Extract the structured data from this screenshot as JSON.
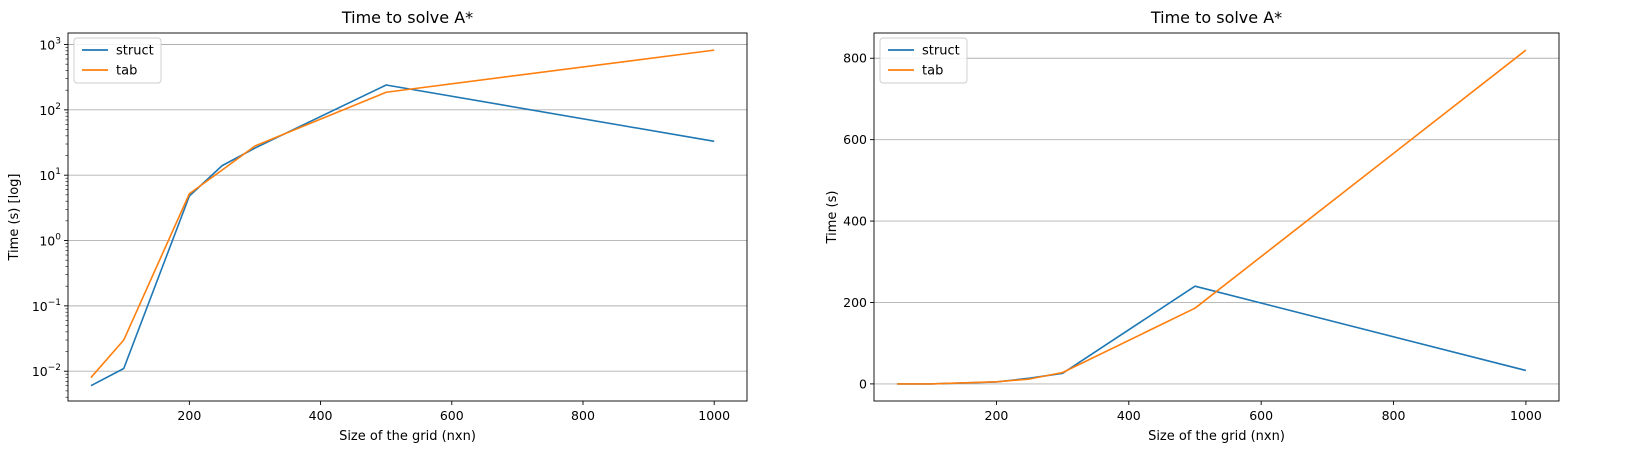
{
  "chart_data": [
    {
      "type": "line",
      "title": "Time to solve A*",
      "xlabel": "Size of the grid (nxn)",
      "ylabel": "Time (s) [log]",
      "yscale": "log",
      "xlim": [
        15,
        1050
      ],
      "ylim": [
        0.0035,
        1500
      ],
      "xticks": [
        200,
        400,
        600,
        800,
        1000
      ],
      "yticks": [
        0.01,
        0.1,
        1,
        10,
        100,
        1000
      ],
      "ytick_labels": [
        {
          "base": "10",
          "exp": "−2"
        },
        {
          "base": "10",
          "exp": "−1"
        },
        {
          "base": "10",
          "exp": "0"
        },
        {
          "base": "10",
          "exp": "1"
        },
        {
          "base": "10",
          "exp": "2"
        },
        {
          "base": "10",
          "exp": "3"
        }
      ],
      "grid": "y",
      "legend_position": "top-left",
      "x": [
        50,
        100,
        200,
        250,
        300,
        500,
        1000
      ],
      "series": [
        {
          "name": "struct",
          "color": "#1f77b4",
          "values": [
            0.006,
            0.011,
            4.8,
            14,
            26,
            240,
            33
          ]
        },
        {
          "name": "tab",
          "color": "#ff7f0e",
          "values": [
            0.008,
            0.03,
            5.2,
            12,
            28,
            186,
            820
          ]
        }
      ]
    },
    {
      "type": "line",
      "title": "Time to solve A*",
      "xlabel": "Size of the grid (nxn)",
      "ylabel": "Time (s)",
      "yscale": "linear",
      "xlim": [
        15,
        1050
      ],
      "ylim": [
        -42,
        862
      ],
      "xticks": [
        200,
        400,
        600,
        800,
        1000
      ],
      "yticks": [
        0,
        200,
        400,
        600,
        800
      ],
      "grid": "y",
      "legend_position": "top-left",
      "x": [
        50,
        100,
        200,
        250,
        300,
        500,
        1000
      ],
      "series": [
        {
          "name": "struct",
          "color": "#1f77b4",
          "values": [
            0.006,
            0.011,
            4.8,
            14,
            26,
            240,
            33
          ]
        },
        {
          "name": "tab",
          "color": "#ff7f0e",
          "values": [
            0.008,
            0.03,
            5.2,
            12,
            28,
            186,
            820
          ]
        }
      ]
    }
  ]
}
